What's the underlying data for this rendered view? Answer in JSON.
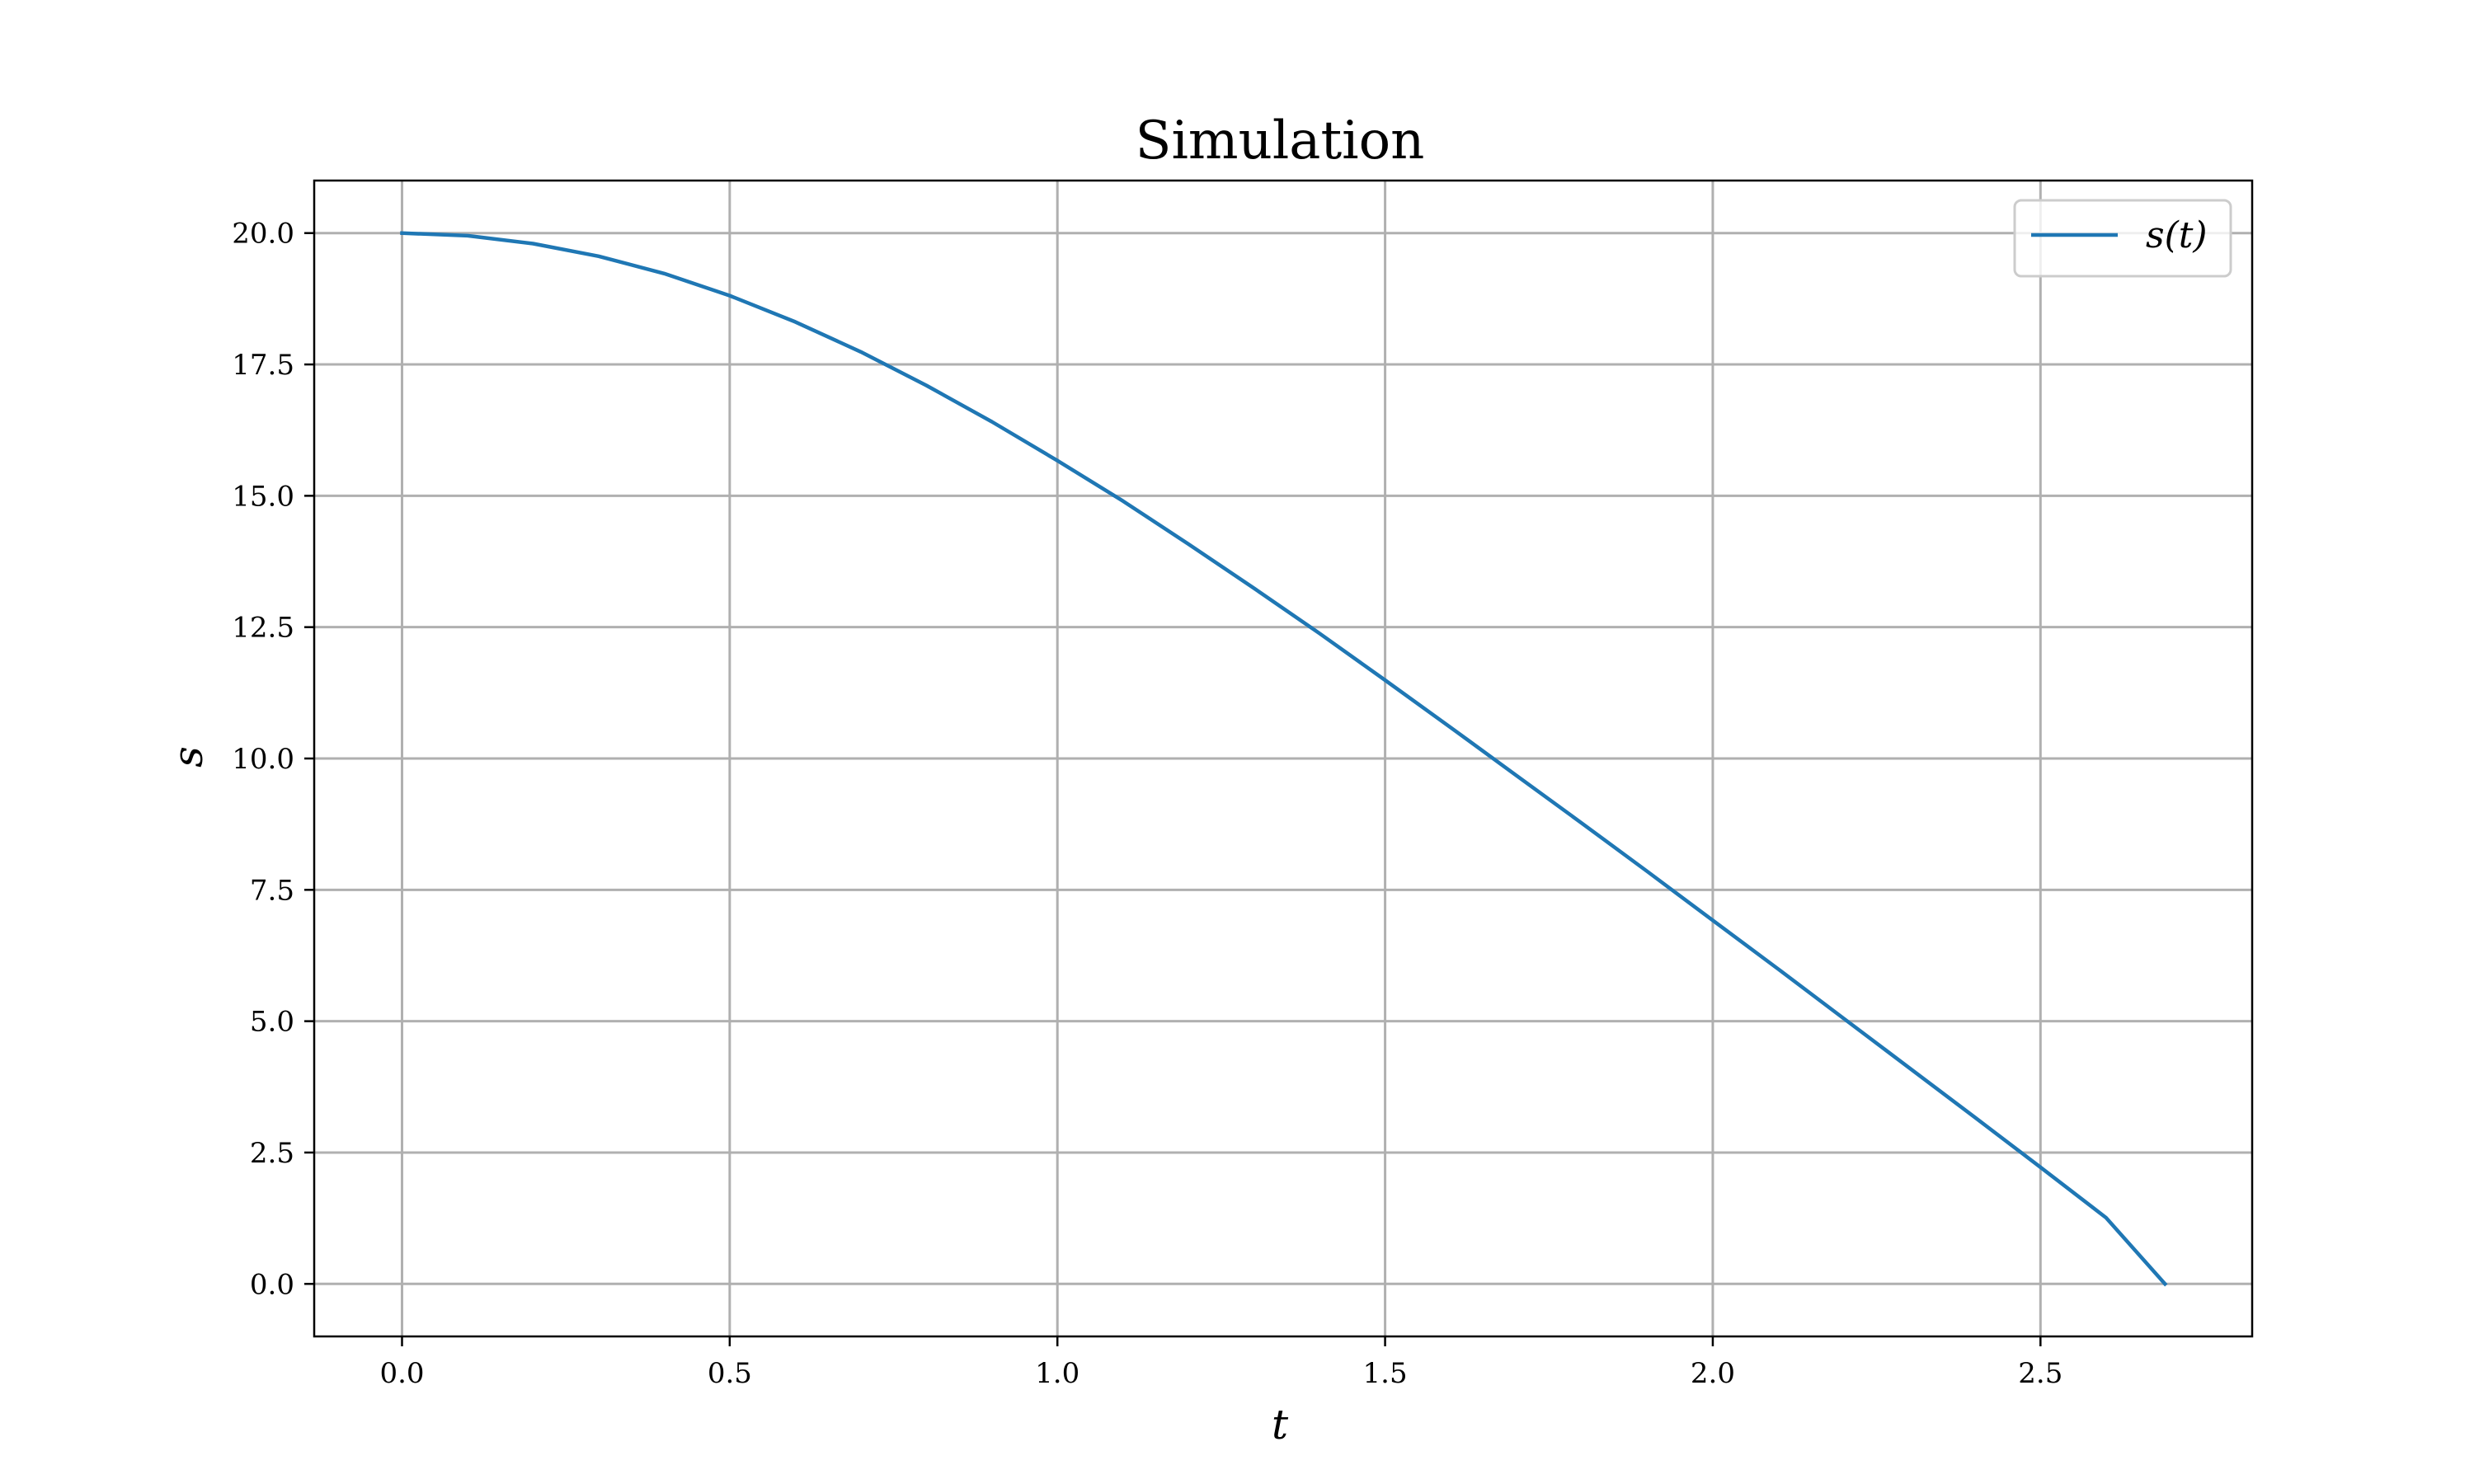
{
  "chart_data": {
    "type": "line",
    "title": "Simulation",
    "xlabel": "t",
    "ylabel": "s",
    "xlim": [
      -0.134,
      2.823
    ],
    "ylim": [
      -1.0,
      21.0
    ],
    "xticks": [
      0.0,
      0.5,
      1.0,
      1.5,
      2.0,
      2.5
    ],
    "xtick_labels": [
      "0.0",
      "0.5",
      "1.0",
      "1.5",
      "2.0",
      "2.5"
    ],
    "yticks": [
      0.0,
      2.5,
      5.0,
      7.5,
      10.0,
      12.5,
      15.0,
      17.5,
      20.0
    ],
    "ytick_labels": [
      "0.0",
      "2.5",
      "5.0",
      "7.5",
      "10.0",
      "12.5",
      "15.0",
      "17.5",
      "20.0"
    ],
    "grid": true,
    "legend_position": "top-right",
    "series": [
      {
        "name": "s(t)",
        "color": "#1f77b4",
        "x": [
          0.0,
          0.1,
          0.2,
          0.3,
          0.4,
          0.5,
          0.6,
          0.7,
          0.8,
          0.9,
          1.0,
          1.1,
          1.2,
          1.3,
          1.4,
          1.5,
          1.6,
          1.7,
          1.8,
          1.9,
          2.0,
          2.1,
          2.2,
          2.3,
          2.4,
          2.5,
          2.6,
          2.69
        ],
        "y": [
          20.0,
          19.95,
          19.8,
          19.56,
          19.23,
          18.81,
          18.31,
          17.74,
          17.1,
          16.41,
          15.67,
          14.9,
          14.08,
          13.24,
          12.38,
          11.49,
          10.59,
          9.68,
          8.77,
          7.85,
          6.92,
          5.99,
          5.05,
          4.11,
          3.17,
          2.22,
          1.26,
          0.0
        ]
      }
    ]
  }
}
